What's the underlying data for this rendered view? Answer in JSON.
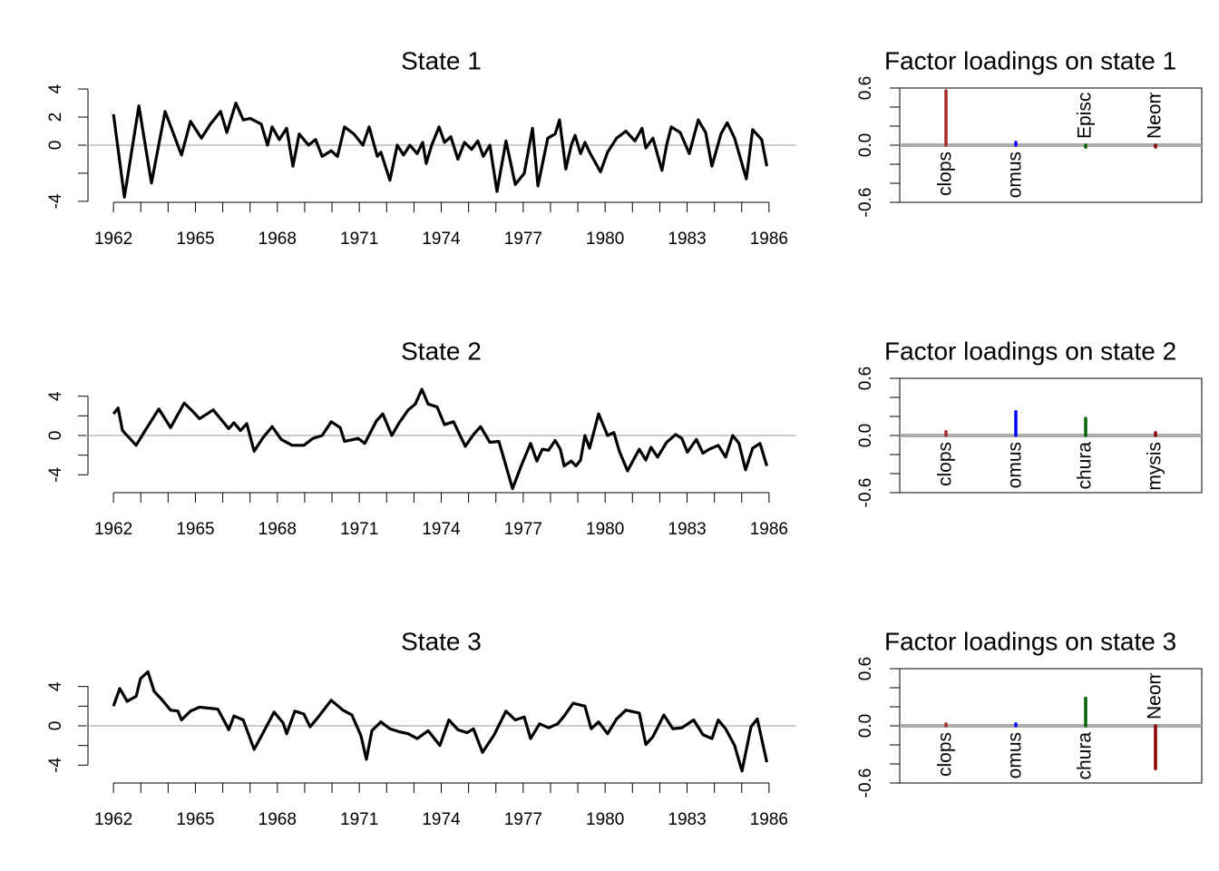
{
  "chart_data": [
    {
      "type": "line",
      "title": "State 1",
      "color": "#000000",
      "x": [
        1962.0,
        1962.4,
        1962.93,
        1963.39,
        1963.89,
        1964.49,
        1964.82,
        1965.22,
        1965.55,
        1965.92,
        1966.15,
        1966.48,
        1966.75,
        1967.01,
        1967.41,
        1967.64,
        1967.81,
        1968.07,
        1968.34,
        1968.57,
        1968.8,
        1969.14,
        1969.4,
        1969.64,
        1969.97,
        1970.2,
        1970.46,
        1970.8,
        1971.13,
        1971.36,
        1971.66,
        1971.79,
        1972.12,
        1972.39,
        1972.62,
        1972.85,
        1973.12,
        1973.32,
        1973.45,
        1973.65,
        1973.92,
        1974.12,
        1974.35,
        1974.61,
        1974.85,
        1975.11,
        1975.34,
        1975.54,
        1975.78,
        1976.04,
        1976.37,
        1976.71,
        1977.04,
        1977.34,
        1977.54,
        1977.9,
        1978.17,
        1978.33,
        1978.56,
        1978.76,
        1978.9,
        1979.1,
        1979.26,
        1979.43,
        1979.83,
        1980.09,
        1980.42,
        1980.76,
        1981.09,
        1981.35,
        1981.49,
        1981.75,
        1982.08,
        1982.25,
        1982.42,
        1982.75,
        1983.08,
        1983.41,
        1983.68,
        1983.91,
        1984.24,
        1984.47,
        1984.74,
        1985.17,
        1985.4,
        1985.73,
        1985.92
      ],
      "values": [
        2.2,
        -3.7,
        2.8,
        -2.7,
        2.4,
        -0.7,
        1.7,
        0.5,
        1.5,
        2.4,
        0.9,
        3.0,
        1.8,
        1.9,
        1.5,
        0,
        1.3,
        0.4,
        1.2,
        -1.5,
        0.8,
        0,
        0.4,
        -0.8,
        -0.4,
        -0.8,
        1.3,
        0.8,
        0,
        1.3,
        -0.8,
        -0.5,
        -2.5,
        0,
        -0.7,
        0,
        -0.6,
        0.2,
        -1.3,
        0,
        1.3,
        0.2,
        0.6,
        -1.0,
        0.2,
        -0.3,
        0.3,
        -0.8,
        0,
        -3.3,
        0.3,
        -2.8,
        -2.0,
        1.2,
        -2.9,
        0.5,
        0.8,
        1.8,
        -1.7,
        0,
        0.7,
        -0.6,
        0.2,
        -0.5,
        -1.9,
        -0.5,
        0.5,
        1.0,
        0.3,
        1.2,
        -0.2,
        0.5,
        -1.8,
        0,
        1.3,
        0.9,
        -0.6,
        1.8,
        0.9,
        -1.5,
        0.8,
        1.6,
        0.5,
        -2.4,
        1.1,
        0.4,
        -1.5
      ],
      "xlim": [
        1961,
        1987
      ],
      "xticks": [
        1962,
        1965,
        1968,
        1971,
        1974,
        1977,
        1980,
        1983,
        1986
      ],
      "minor_xticks": [
        1963,
        1964,
        1966,
        1967,
        1969,
        1970,
        1972,
        1973,
        1975,
        1976,
        1978,
        1979,
        1981,
        1982,
        1984,
        1985
      ],
      "ylim": [
        -4.2,
        4.2
      ],
      "yticks": [
        -4,
        0,
        2,
        4
      ],
      "minor_yticks": [
        -2
      ],
      "hline": 0
    },
    {
      "type": "bar",
      "title": "Factor loadings on state 1",
      "categories": [
        "clops",
        "omus",
        "Episc",
        "Neom"
      ],
      "values": [
        0.57,
        0.03,
        -0.02,
        -0.02
      ],
      "colors": [
        "#a52a2a",
        "#0000ff",
        "#006400",
        "#8b0000"
      ],
      "ylim": [
        -0.6,
        0.6
      ],
      "yticks": [
        -0.6,
        {
          "value": 0,
          "label": "0.0"
        },
        0.6
      ],
      "minor_yticks": [
        -0.4,
        -0.2,
        0.2,
        0.4
      ],
      "hline": 0
    },
    {
      "type": "line",
      "title": "State 2",
      "color": "#000000",
      "x": [
        1962.0,
        1962.17,
        1962.33,
        1962.83,
        1963.16,
        1963.66,
        1964.09,
        1964.59,
        1964.92,
        1965.15,
        1965.65,
        1965.98,
        1966.22,
        1966.41,
        1966.65,
        1966.88,
        1967.15,
        1967.48,
        1967.81,
        1968.14,
        1968.54,
        1968.97,
        1969.3,
        1969.64,
        1969.97,
        1970.3,
        1970.46,
        1970.96,
        1971.2,
        1971.63,
        1971.86,
        1972.19,
        1972.46,
        1972.79,
        1973.05,
        1973.29,
        1973.52,
        1973.85,
        1974.12,
        1974.45,
        1974.88,
        1975.18,
        1975.44,
        1975.78,
        1976.11,
        1976.61,
        1976.94,
        1977.27,
        1977.5,
        1977.7,
        1977.93,
        1978.17,
        1978.36,
        1978.5,
        1978.76,
        1978.93,
        1979.1,
        1979.26,
        1979.43,
        1979.76,
        1980.09,
        1980.32,
        1980.52,
        1980.82,
        1981.09,
        1981.25,
        1981.49,
        1981.68,
        1981.92,
        1982.25,
        1982.58,
        1982.81,
        1983.01,
        1983.34,
        1983.58,
        1983.81,
        1984.14,
        1984.41,
        1984.67,
        1984.9,
        1985.14,
        1985.4,
        1985.67,
        1985.92
      ],
      "values": [
        2.2,
        2.8,
        0.5,
        -1.0,
        0.5,
        2.7,
        0.8,
        3.3,
        2.4,
        1.7,
        2.6,
        1.5,
        0.7,
        1.3,
        0.5,
        1.2,
        -1.6,
        -0.2,
        0.9,
        -0.4,
        -1.0,
        -1.0,
        -0.3,
        0,
        1.4,
        0.8,
        -0.6,
        -0.3,
        -0.8,
        1.5,
        2.2,
        0.0,
        1.3,
        2.6,
        3.2,
        4.7,
        3.2,
        2.9,
        1.1,
        1.4,
        -1.1,
        0.1,
        0.9,
        -0.7,
        -0.6,
        -5.4,
        -3.0,
        -0.8,
        -2.6,
        -1.4,
        -1.5,
        -0.5,
        -1.4,
        -3.1,
        -2.6,
        -3.1,
        -2.5,
        0,
        -1.3,
        2.2,
        0,
        0.3,
        -1.6,
        -3.6,
        -2.2,
        -1.4,
        -2.5,
        -1.2,
        -2.2,
        -0.7,
        0.1,
        -0.3,
        -1.7,
        -0.4,
        -1.8,
        -1.4,
        -1.0,
        -2.2,
        0,
        -0.8,
        -3.5,
        -1.3,
        -0.8,
        -3.1
      ],
      "xlim": [
        1961,
        1987
      ],
      "xticks": [
        1962,
        1965,
        1968,
        1971,
        1974,
        1977,
        1980,
        1983,
        1986
      ],
      "minor_xticks": [
        1963,
        1964,
        1966,
        1967,
        1969,
        1970,
        1972,
        1973,
        1975,
        1976,
        1978,
        1979,
        1981,
        1982,
        1984,
        1985
      ],
      "ylim": [
        -6,
        6
      ],
      "yticks": [
        -4,
        0,
        4
      ],
      "minor_yticks": [
        -2,
        2
      ],
      "hline": 0
    },
    {
      "type": "bar",
      "title": "Factor loadings on state 2",
      "categories": [
        "clops",
        "omus",
        "chura",
        "mysis"
      ],
      "values": [
        0.04,
        0.25,
        0.18,
        0.03
      ],
      "colors": [
        "#a52a2a",
        "#0000ff",
        "#006400",
        "#8b0000"
      ],
      "ylim": [
        -0.6,
        0.6
      ],
      "yticks": [
        -0.6,
        {
          "value": 0,
          "label": "0.0"
        },
        0.6
      ],
      "minor_yticks": [
        -0.4,
        -0.2,
        0.2,
        0.4
      ],
      "hline": 0
    },
    {
      "type": "line",
      "title": "State 3",
      "color": "#000000",
      "x": [
        1962.0,
        1962.23,
        1962.5,
        1962.83,
        1962.99,
        1963.26,
        1963.49,
        1963.76,
        1964.09,
        1964.36,
        1964.49,
        1964.82,
        1965.15,
        1965.49,
        1965.82,
        1966.15,
        1966.22,
        1966.41,
        1966.75,
        1967.15,
        1967.48,
        1967.88,
        1968.21,
        1968.34,
        1968.64,
        1968.97,
        1969.2,
        1969.47,
        1969.97,
        1970.4,
        1970.73,
        1971.06,
        1971.26,
        1971.46,
        1971.79,
        1972.12,
        1972.46,
        1972.79,
        1973.12,
        1973.52,
        1973.95,
        1974.28,
        1974.61,
        1974.95,
        1975.18,
        1975.51,
        1975.94,
        1976.37,
        1976.71,
        1977.04,
        1977.27,
        1977.6,
        1977.93,
        1978.26,
        1978.5,
        1978.83,
        1979.26,
        1979.49,
        1979.76,
        1980.09,
        1980.42,
        1980.76,
        1981.25,
        1981.49,
        1981.75,
        1982.15,
        1982.48,
        1982.81,
        1983.24,
        1983.58,
        1983.91,
        1984.14,
        1984.41,
        1984.74,
        1985.01,
        1985.34,
        1985.57,
        1985.92
      ],
      "values": [
        2.0,
        3.8,
        2.5,
        3.0,
        4.8,
        5.5,
        3.5,
        2.7,
        1.6,
        1.5,
        0.6,
        1.5,
        1.9,
        1.8,
        1.7,
        0,
        -0.4,
        1.0,
        0.6,
        -2.4,
        -0.7,
        1.4,
        0.3,
        -0.8,
        1.5,
        1.2,
        -0.1,
        0.8,
        2.6,
        1.6,
        1.1,
        -1.0,
        -3.4,
        -0.5,
        0.4,
        -0.3,
        -0.6,
        -0.8,
        -1.3,
        -0.5,
        -2.0,
        0.6,
        -0.4,
        -0.7,
        -0.3,
        -2.7,
        -0.9,
        1.5,
        0.6,
        0.9,
        -1.3,
        0.2,
        -0.2,
        0.2,
        1.0,
        2.3,
        2.0,
        -0.3,
        0.4,
        -0.8,
        0.7,
        1.6,
        1.3,
        -1.9,
        -1.1,
        1.1,
        -0.3,
        -0.2,
        0.6,
        -0.9,
        -1.3,
        0.6,
        -0.3,
        -2.0,
        -4.6,
        -0.1,
        0.7,
        -3.7
      ],
      "xlim": [
        1961,
        1987
      ],
      "xticks": [
        1962,
        1965,
        1968,
        1971,
        1974,
        1977,
        1980,
        1983,
        1986
      ],
      "minor_xticks": [
        1963,
        1964,
        1966,
        1967,
        1969,
        1970,
        1972,
        1973,
        1975,
        1976,
        1978,
        1979,
        1981,
        1982,
        1984,
        1985
      ],
      "ylim": [
        -6,
        6
      ],
      "yticks": [
        -4,
        0,
        4
      ],
      "minor_yticks": [
        -2,
        2
      ],
      "hline": 0
    },
    {
      "type": "bar",
      "title": "Factor loadings on state 3",
      "categories": [
        "clops",
        "omus",
        "chura",
        "Neom"
      ],
      "values": [
        0.02,
        0.02,
        0.29,
        -0.45
      ],
      "colors": [
        "#a52a2a",
        "#0000ff",
        "#006400",
        "#8b0000"
      ],
      "ylim": [
        -0.6,
        0.6
      ],
      "yticks": [
        -0.6,
        {
          "value": 0,
          "label": "0.0"
        },
        0.6
      ],
      "minor_yticks": [
        -0.4,
        -0.2,
        0.2,
        0.4
      ],
      "hline": 0
    }
  ]
}
